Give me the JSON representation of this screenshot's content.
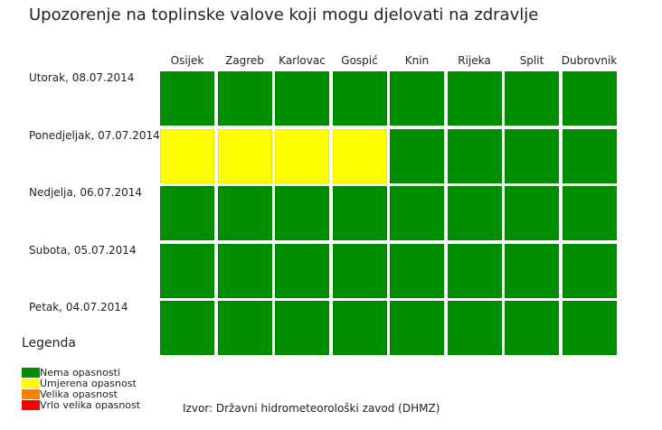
{
  "chart_data": {
    "type": "heatmap",
    "title": "Upozorenje na toplinske valove koji mogu djelovati na zdravlje",
    "columns": [
      "Osijek",
      "Zagreb",
      "Karlovac",
      "Gospić",
      "Knin",
      "Rijeka",
      "Split",
      "Dubrovnik"
    ],
    "rows": [
      "Utorak, 08.07.2014",
      "Ponedjeljak, 07.07.2014",
      "Nedjelja, 06.07.2014",
      "Subota, 05.07.2014",
      "Petak, 04.07.2014"
    ],
    "values": [
      [
        0,
        0,
        0,
        0,
        0,
        0,
        0,
        0
      ],
      [
        1,
        1,
        1,
        1,
        0,
        0,
        0,
        0
      ],
      [
        0,
        0,
        0,
        0,
        0,
        0,
        0,
        0
      ],
      [
        0,
        0,
        0,
        0,
        0,
        0,
        0,
        0
      ],
      [
        0,
        0,
        0,
        0,
        0,
        0,
        0,
        0
      ]
    ],
    "legend": {
      "title": "Legenda",
      "items": [
        {
          "label": "Nema opasnosti",
          "color": "#008f00"
        },
        {
          "label": "Umjerena opasnost",
          "color": "#ffff00"
        },
        {
          "label": "Velika opasnost",
          "color": "#ff8000"
        },
        {
          "label": "Vrlo velika opasnost",
          "color": "#ff0000"
        }
      ]
    },
    "source": "Izvor: Državni hidrometeorološki zavod (DHMZ)"
  }
}
